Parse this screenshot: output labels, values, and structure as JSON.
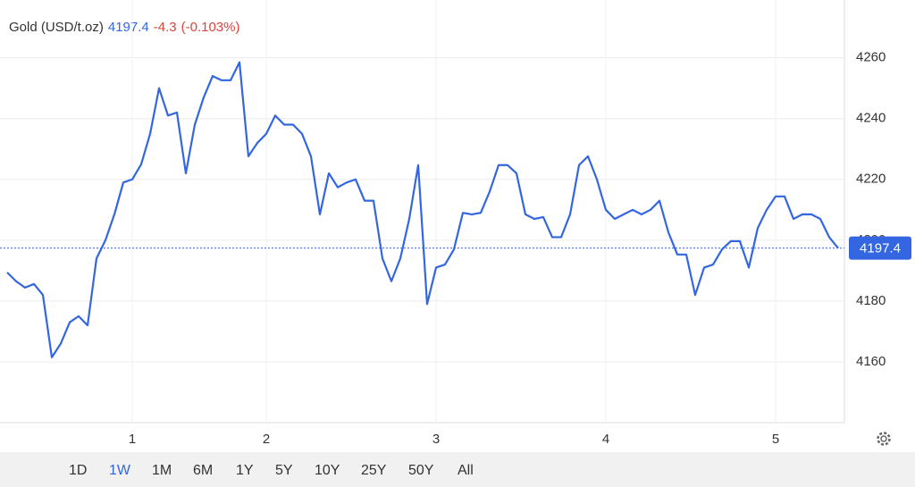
{
  "header": {
    "title": "Gold (USD/t.oz)",
    "price": 4197.4,
    "change": -4.3,
    "change_percent": "(-0.103%)"
  },
  "chart_data": {
    "type": "line",
    "title": "Gold (USD/t.oz)",
    "categories": [
      null,
      null,
      null,
      null,
      null,
      null,
      null,
      null,
      null,
      null,
      null,
      null,
      null,
      null,
      "1",
      null,
      null,
      null,
      null,
      null,
      null,
      null,
      null,
      null,
      null,
      null,
      null,
      null,
      null,
      "2",
      null,
      null,
      null,
      null,
      null,
      null,
      null,
      null,
      null,
      null,
      null,
      null,
      null,
      null,
      null,
      null,
      null,
      null,
      "3",
      null,
      null,
      null,
      null,
      null,
      null,
      null,
      null,
      null,
      null,
      null,
      null,
      null,
      null,
      null,
      null,
      null,
      null,
      "4",
      null,
      null,
      null,
      null,
      null,
      null,
      null,
      null,
      null,
      null,
      null,
      null,
      null,
      null,
      null,
      null,
      null,
      null,
      "5",
      null,
      null,
      null,
      null,
      null,
      null,
      null
    ],
    "series": [
      {
        "name": "Gold (USD/t.oz)",
        "color": "#3366e0",
        "values": [
          4189.4,
          4186.5,
          4184.4,
          4185.6,
          4182,
          4161.5,
          4166,
          4173,
          4175,
          4172,
          4194,
          4200,
          4208.5,
          4219,
          4220,
          4225,
          4235,
          4250,
          4241,
          4242,
          4222,
          4238,
          4247,
          4254,
          4252.6,
          4252.6,
          4258.5,
          4227.6,
          4232,
          4235,
          4241,
          4238,
          4238,
          4235,
          4227.6,
          4208.5,
          4222,
          4217.4,
          4219,
          4220,
          4213,
          4213,
          4194,
          4186.5,
          4194,
          4207,
          4224.7,
          4179,
          4191,
          4192,
          4197,
          4209,
          4208.5,
          4209,
          4216,
          4224.7,
          4224.7,
          4222,
          4208.5,
          4207,
          4207.6,
          4201,
          4201,
          4208.5,
          4224.7,
          4227.6,
          4220,
          4210,
          4207,
          4208.5,
          4210,
          4208.5,
          4210,
          4213,
          4202.6,
          4195.3,
          4195.3,
          4182,
          4191,
          4192,
          4197,
          4199.7,
          4199.7,
          4191,
          4204,
          4210,
          4214.4,
          4214.4,
          4207,
          4208.5,
          4208.5,
          4207,
          4201,
          4197.4
        ]
      }
    ],
    "last_value": 4197.4,
    "ylim": [
      4140,
      4279
    ],
    "yticks": [
      4160,
      4180,
      4200,
      4220,
      4240,
      4260
    ],
    "grid": true
  },
  "ranges": [
    "1D",
    "1W",
    "1M",
    "6M",
    "1Y",
    "5Y",
    "10Y",
    "25Y",
    "50Y",
    "All"
  ],
  "selected_range": "1W"
}
